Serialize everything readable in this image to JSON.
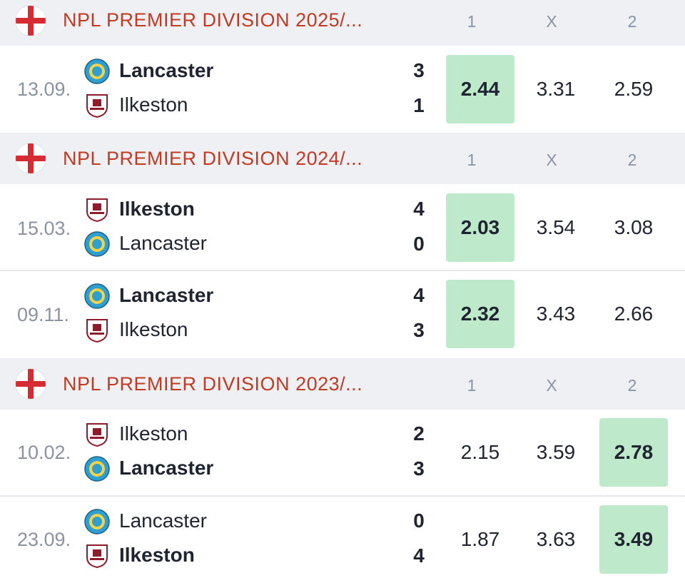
{
  "colors": {
    "league": "#c23a22",
    "win_bg": "#bfe9cb",
    "header_bg": "#eef0f4"
  },
  "sections": [
    {
      "league": "NPL PREMIER DIVISION 2025/...",
      "cols": [
        "1",
        "X",
        "2"
      ],
      "matches": [
        {
          "date": "13.09.",
          "home": {
            "name": "Lancaster",
            "logo": "lancaster-crest-icon",
            "score": "3",
            "winner": true
          },
          "away": {
            "name": "Ilkeston",
            "logo": "ilkeston-crest-icon",
            "score": "1",
            "winner": false
          },
          "odds": [
            "2.44",
            "3.31",
            "2.59"
          ],
          "highlight": 0
        }
      ]
    },
    {
      "league": "NPL PREMIER DIVISION 2024/...",
      "cols": [
        "1",
        "X",
        "2"
      ],
      "matches": [
        {
          "date": "15.03.",
          "home": {
            "name": "Ilkeston",
            "logo": "ilkeston-crest-icon",
            "score": "4",
            "winner": true
          },
          "away": {
            "name": "Lancaster",
            "logo": "lancaster-crest-icon",
            "score": "0",
            "winner": false
          },
          "odds": [
            "2.03",
            "3.54",
            "3.08"
          ],
          "highlight": 0
        },
        {
          "date": "09.11.",
          "home": {
            "name": "Lancaster",
            "logo": "lancaster-crest-icon",
            "score": "4",
            "winner": true
          },
          "away": {
            "name": "Ilkeston",
            "logo": "ilkeston-crest-icon",
            "score": "3",
            "winner": false
          },
          "odds": [
            "2.32",
            "3.43",
            "2.66"
          ],
          "highlight": 0
        }
      ]
    },
    {
      "league": "NPL PREMIER DIVISION 2023/...",
      "cols": [
        "1",
        "X",
        "2"
      ],
      "matches": [
        {
          "date": "10.02.",
          "home": {
            "name": "Ilkeston",
            "logo": "ilkeston-crest-icon",
            "score": "2",
            "winner": false
          },
          "away": {
            "name": "Lancaster",
            "logo": "lancaster-crest-icon",
            "score": "3",
            "winner": true
          },
          "odds": [
            "2.15",
            "3.59",
            "2.78"
          ],
          "highlight": 2
        },
        {
          "date": "23.09.",
          "home": {
            "name": "Lancaster",
            "logo": "lancaster-crest-icon",
            "score": "0",
            "winner": false
          },
          "away": {
            "name": "Ilkeston",
            "logo": "ilkeston-crest-icon",
            "score": "4",
            "winner": true
          },
          "odds": [
            "1.87",
            "3.63",
            "3.49"
          ],
          "highlight": 2
        }
      ]
    }
  ]
}
